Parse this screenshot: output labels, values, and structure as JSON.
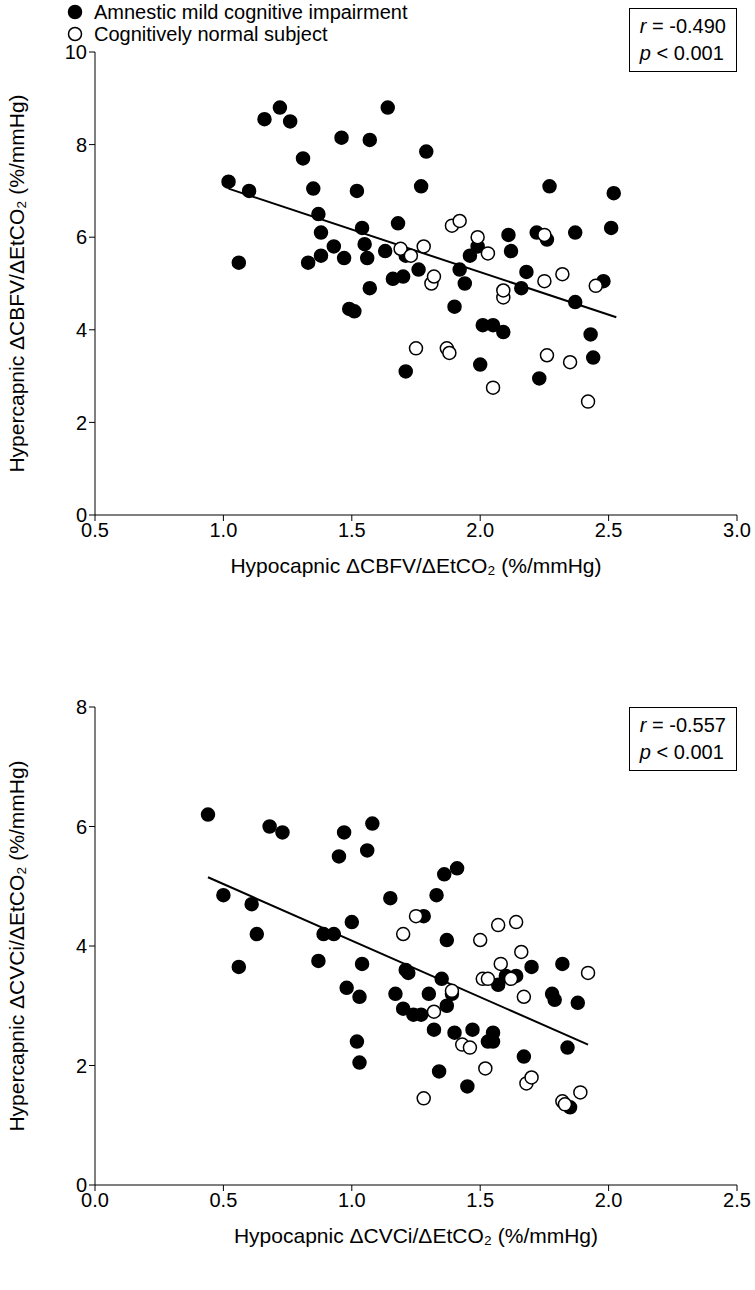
{
  "chart_data": [
    {
      "type": "scatter",
      "x_label": "Hypocapnic ΔCBFV/ΔEtCO₂ (%/mmHg)",
      "y_label": "Hypercapnic ΔCBFV/ΔEtCO₂ (%/mmHg)",
      "xlim": [
        0.5,
        3.0
      ],
      "ylim": [
        0,
        10
      ],
      "xticks": [
        0.5,
        {
          "value": 1,
          "label": "1.0"
        },
        1.5,
        {
          "value": 2,
          "label": "2.0"
        },
        2.5,
        {
          "value": 3,
          "label": "3.0"
        }
      ],
      "yticks": [
        0,
        2,
        4,
        6,
        8,
        10
      ],
      "legend": "top left",
      "grid": false,
      "annotations": [
        "r = -0.490",
        "p < 0.001"
      ],
      "trend": {
        "x": [
          1.02,
          2.53
        ],
        "y": [
          7.05,
          4.27
        ]
      },
      "series": [
        {
          "name": "Amnestic mild cognitive impairment",
          "color": "#000000",
          "marker": "filled circle",
          "x": [
            1.02,
            1.06,
            1.1,
            1.16,
            1.22,
            1.26,
            1.31,
            1.33,
            1.35,
            1.37,
            1.38,
            1.38,
            1.43,
            1.46,
            1.47,
            1.49,
            1.51,
            1.52,
            1.54,
            1.55,
            1.56,
            1.57,
            1.57,
            1.63,
            1.64,
            1.66,
            1.68,
            1.7,
            1.71,
            1.71,
            1.76,
            1.77,
            1.79,
            1.9,
            1.92,
            1.94,
            1.96,
            1.99,
            2.0,
            2.01,
            2.05,
            2.09,
            2.11,
            2.12,
            2.16,
            2.18,
            2.22,
            2.23,
            2.26,
            2.27,
            2.37,
            2.37,
            2.43,
            2.44,
            2.48,
            2.51,
            2.52
          ],
          "y": [
            7.2,
            5.45,
            7.0,
            8.55,
            8.8,
            8.5,
            7.7,
            5.45,
            7.05,
            6.5,
            6.1,
            5.6,
            5.8,
            8.15,
            5.55,
            4.45,
            4.4,
            7.0,
            6.2,
            5.85,
            5.55,
            4.9,
            8.1,
            5.7,
            8.8,
            5.1,
            6.3,
            5.15,
            3.1,
            5.6,
            5.3,
            7.1,
            7.85,
            4.5,
            5.3,
            5.0,
            5.6,
            5.8,
            3.25,
            4.1,
            4.1,
            3.95,
            6.05,
            5.7,
            4.9,
            5.25,
            6.1,
            2.95,
            5.95,
            7.1,
            6.1,
            4.6,
            3.9,
            3.4,
            5.05,
            6.2,
            6.95
          ]
        },
        {
          "name": "Cognitively normal subject",
          "color": "#000000",
          "marker": "open circle",
          "x": [
            1.69,
            1.73,
            1.75,
            1.78,
            1.81,
            1.82,
            1.87,
            1.88,
            1.89,
            1.92,
            1.99,
            2.03,
            2.05,
            2.09,
            2.09,
            2.25,
            2.25,
            2.26,
            2.32,
            2.35,
            2.42,
            2.45
          ],
          "y": [
            5.75,
            5.6,
            3.6,
            5.8,
            5.0,
            5.15,
            3.6,
            3.5,
            6.25,
            6.35,
            6.0,
            5.65,
            2.75,
            4.7,
            4.85,
            6.05,
            5.05,
            3.45,
            5.2,
            3.3,
            2.45,
            4.95
          ]
        }
      ]
    },
    {
      "type": "scatter",
      "x_label": "Hypocapnic ΔCVCi/ΔEtCO₂ (%/mmHg)",
      "y_label": "Hypercapnic ΔCVCi/ΔEtCO₂ (%/mmHg)",
      "xlim": [
        0,
        2.5
      ],
      "ylim": [
        0,
        8
      ],
      "xticks": [
        {
          "value": 0,
          "label": "0.0"
        },
        0.5,
        {
          "value": 1,
          "label": "1.0"
        },
        1.5,
        {
          "value": 2,
          "label": "2.0"
        },
        2.5
      ],
      "yticks": [
        0,
        2,
        4,
        6,
        8
      ],
      "grid": false,
      "annotations": [
        "r = -0.557",
        "p < 0.001"
      ],
      "trend": {
        "x": [
          0.44,
          1.92
        ],
        "y": [
          5.15,
          2.35
        ]
      },
      "series": [
        {
          "color": "#000000",
          "marker": "filled circle",
          "x": [
            0.44,
            0.5,
            0.56,
            0.61,
            0.63,
            0.68,
            0.73,
            0.87,
            0.89,
            0.93,
            0.95,
            0.97,
            0.98,
            1.0,
            1.02,
            1.03,
            1.03,
            1.04,
            1.06,
            1.08,
            1.15,
            1.17,
            1.2,
            1.21,
            1.22,
            1.24,
            1.27,
            1.28,
            1.3,
            1.32,
            1.33,
            1.34,
            1.35,
            1.36,
            1.37,
            1.37,
            1.39,
            1.4,
            1.41,
            1.45,
            1.47,
            1.53,
            1.55,
            1.55,
            1.57,
            1.6,
            1.64,
            1.67,
            1.7,
            1.78,
            1.79,
            1.82,
            1.84,
            1.85,
            1.88
          ],
          "y": [
            6.2,
            4.85,
            3.65,
            4.7,
            4.2,
            6.0,
            5.9,
            3.75,
            4.2,
            4.2,
            5.5,
            5.9,
            3.3,
            4.4,
            2.4,
            2.05,
            3.15,
            3.7,
            5.6,
            6.05,
            4.8,
            3.2,
            2.95,
            3.6,
            3.55,
            2.85,
            2.85,
            4.5,
            3.2,
            2.6,
            4.85,
            1.9,
            3.45,
            5.2,
            4.1,
            3.0,
            3.2,
            2.55,
            5.3,
            1.65,
            2.6,
            2.4,
            2.4,
            2.55,
            3.35,
            3.5,
            3.5,
            2.15,
            3.65,
            3.2,
            3.1,
            3.7,
            2.3,
            1.3,
            3.05
          ]
        },
        {
          "color": "#000000",
          "marker": "open circle",
          "x": [
            1.2,
            1.25,
            1.28,
            1.32,
            1.39,
            1.43,
            1.46,
            1.5,
            1.51,
            1.52,
            1.53,
            1.57,
            1.58,
            1.62,
            1.64,
            1.66,
            1.67,
            1.68,
            1.7,
            1.82,
            1.83,
            1.89,
            1.92
          ],
          "y": [
            4.2,
            4.5,
            1.45,
            2.9,
            3.25,
            2.35,
            2.3,
            4.1,
            3.45,
            1.95,
            3.45,
            4.35,
            3.7,
            3.45,
            4.4,
            3.9,
            3.15,
            1.7,
            1.8,
            1.4,
            1.35,
            1.55,
            3.55
          ]
        }
      ]
    }
  ]
}
